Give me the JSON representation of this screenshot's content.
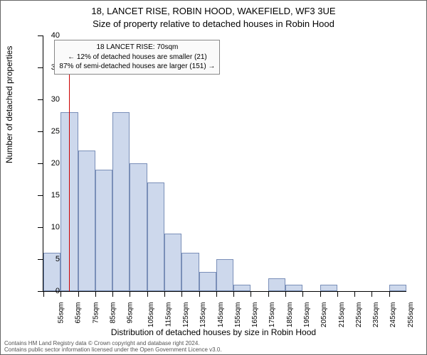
{
  "title_line1": "18, LANCET RISE, ROBIN HOOD, WAKEFIELD, WF3 3UE",
  "title_line2": "Size of property relative to detached houses in Robin Hood",
  "ylabel": "Number of detached properties",
  "xlabel": "Distribution of detached houses by size in Robin Hood",
  "footer_line1": "Contains HM Land Registry data © Crown copyright and database right 2024.",
  "footer_line2": "Contains public sector information licensed under the Open Government Licence v3.0.",
  "annotation": {
    "line1": "18 LANCET RISE: 70sqm",
    "line2": "← 12% of detached houses are smaller (21)",
    "line3": "87% of semi-detached houses are larger (151) →"
  },
  "chart": {
    "type": "histogram",
    "bar_fill": "#cdd8ec",
    "bar_stroke": "#7a8fb8",
    "marker_color": "#cc0000",
    "marker_x_sqm": 70,
    "background": "#ffffff",
    "ylim": [
      0,
      40
    ],
    "ytick_step": 5,
    "x_start": 55,
    "x_step": 10,
    "x_unit": "sqm",
    "x_count": 21,
    "values": [
      6,
      28,
      22,
      19,
      28,
      20,
      17,
      9,
      6,
      3,
      5,
      1,
      0,
      2,
      1,
      0,
      1,
      0,
      0,
      0,
      1
    ],
    "title_fontsize": 13,
    "axis_label_fontsize": 12,
    "tick_fontsize": 11,
    "xtick_fontsize": 10,
    "annotation_fontsize": 10
  }
}
